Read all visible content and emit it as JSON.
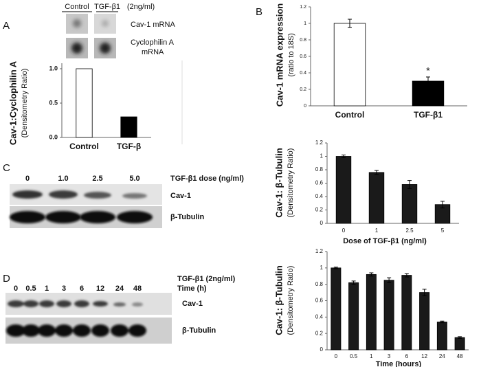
{
  "panel_labels": [
    "A",
    "B",
    "C",
    "D"
  ],
  "blots": {
    "A": {
      "headers": [
        "Control",
        "TGF-β1",
        "(2ng/ml)"
      ],
      "row_labels": [
        "Cav-1 mRNA",
        "Cyclophilin A",
        "mRNA"
      ]
    },
    "C": {
      "lanes": [
        "0",
        "1.0",
        "2.5",
        "5.0"
      ],
      "treatment": "TGF-β1 dose (ng/ml)",
      "row_labels": [
        "Cav-1",
        "β-Tubulin"
      ]
    },
    "D": {
      "treatment": "TGF-β1 (2ng/ml)",
      "time_label": "Time (h)",
      "lanes": [
        "0",
        "0.5",
        "1",
        "3",
        "6",
        "12",
        "24",
        "48"
      ],
      "row_labels": [
        "Cav-1",
        "β-Tubulin"
      ]
    }
  },
  "chart_data": [
    {
      "type": "bar",
      "ylabel": "Cav-1:Cyclophilin A",
      "ylabel_sub": "(Densitometry Ratio)",
      "categories": [
        "Control",
        "TGF-β"
      ],
      "values": [
        1.0,
        0.3
      ],
      "colors": [
        "#ffffff",
        "#000000"
      ],
      "ylim": [
        0,
        1.08
      ],
      "yticks": [
        {
          "value": 0,
          "label": "0.0"
        },
        {
          "value": 0.5,
          "label": "0.5"
        },
        {
          "value": 1,
          "label": "1.0"
        }
      ]
    },
    {
      "type": "bar",
      "ylabel": "Cav-1 mRNA expression",
      "ylabel_sub": "(ratio to 18S)",
      "categories": [
        "Control",
        "TGF-β1"
      ],
      "values": [
        1.0,
        0.3
      ],
      "errors": [
        0.05,
        0.05
      ],
      "colors": [
        "#ffffff",
        "#000000"
      ],
      "annotations": [
        {
          "text": "*",
          "category": "TGF-β1"
        }
      ],
      "ylim": [
        0,
        1.2
      ],
      "yticks": [
        0,
        0.2,
        0.4,
        0.6,
        0.8,
        1,
        1.2
      ]
    },
    {
      "type": "bar",
      "ylabel": "Cav-1: β-Tubulin",
      "ylabel_sub": "(Densitometry Ratio)",
      "xlabel": "Dose of TGF-β1 (ng/ml)",
      "categories": [
        "0",
        "1",
        "2.5",
        "5"
      ],
      "values": [
        1.0,
        0.76,
        0.58,
        0.28
      ],
      "errors": [
        0.02,
        0.03,
        0.06,
        0.05
      ],
      "color": "#1a1a1a",
      "ylim": [
        0,
        1.2
      ],
      "yticks": [
        0,
        0.2,
        0.4,
        0.6,
        0.8,
        1,
        1.2
      ]
    },
    {
      "type": "bar",
      "ylabel": "Cav-1: β-Tubulin",
      "ylabel_sub": "(Densitometry Ratio)",
      "xlabel": "Time (hours)",
      "categories": [
        "0",
        "0.5",
        "1",
        "3",
        "6",
        "12",
        "24",
        "48"
      ],
      "values": [
        1.0,
        0.82,
        0.92,
        0.85,
        0.91,
        0.7,
        0.34,
        0.15
      ],
      "errors": [
        0.01,
        0.02,
        0.02,
        0.03,
        0.02,
        0.04,
        0.01,
        0.01
      ],
      "color": "#1a1a1a",
      "ylim": [
        0,
        1.2
      ],
      "yticks": [
        0,
        0.2,
        0.4,
        0.6,
        0.8,
        1,
        1.2
      ]
    }
  ]
}
